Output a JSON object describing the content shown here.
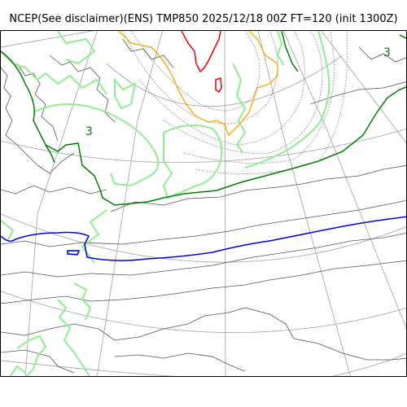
{
  "title": "NCEP(See disclaimer)(ENS) TMP850 2025/12/18 00Z FT=120 (init 1300Z)",
  "map": {
    "contour_labels": [
      "3",
      "3"
    ],
    "colors": {
      "coastline": "#555555",
      "graticule": "#aaaaaa",
      "contour_light_green": "#90ee90",
      "contour_green": "#008000",
      "contour_blue": "#0000dd",
      "contour_orange": "#ffa500",
      "contour_red": "#ee0000",
      "pressure_dotted": "#666666"
    }
  }
}
